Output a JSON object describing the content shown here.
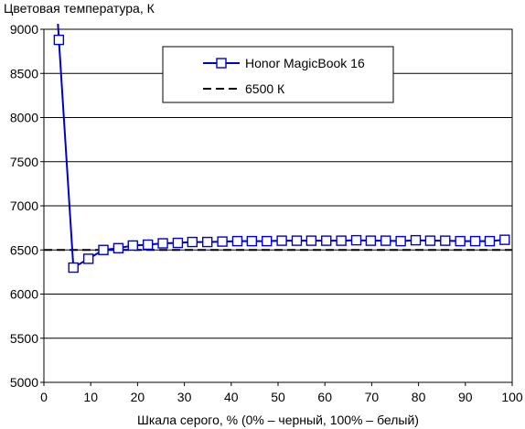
{
  "chart_data": {
    "type": "line",
    "title": "Цветовая температура, К",
    "xlabel": "Шкала серого, % (0% – черный, 100% – белый)",
    "ylabel": "",
    "xlim": [
      0,
      100
    ],
    "ylim": [
      5000,
      9000
    ],
    "x_ticks": [
      0,
      10,
      20,
      30,
      40,
      50,
      60,
      70,
      80,
      90,
      100
    ],
    "y_ticks": [
      5000,
      5500,
      6000,
      6500,
      7000,
      7500,
      8000,
      8500,
      9000
    ],
    "grid": "horizontal",
    "legend_position": "top-center",
    "series": [
      {
        "name": "Honor MagicBook 16",
        "color": "#0000cc",
        "marker": "square-open",
        "line_start": [
          3,
          9200
        ],
        "x": [
          3.2,
          6.3,
          9.5,
          12.7,
          15.9,
          19.0,
          22.2,
          25.4,
          28.6,
          31.7,
          34.9,
          38.1,
          41.3,
          44.4,
          47.6,
          50.8,
          54.0,
          57.1,
          60.3,
          63.5,
          66.7,
          69.8,
          73.0,
          76.2,
          79.4,
          82.5,
          85.7,
          88.9,
          92.1,
          95.2,
          98.4
        ],
        "y": [
          8880,
          6300,
          6400,
          6500,
          6520,
          6550,
          6560,
          6575,
          6580,
          6590,
          6590,
          6595,
          6600,
          6600,
          6600,
          6605,
          6605,
          6605,
          6605,
          6605,
          6610,
          6605,
          6605,
          6600,
          6610,
          6605,
          6605,
          6600,
          6600,
          6600,
          6615
        ]
      },
      {
        "name": "6500 К",
        "color": "#000000",
        "style": "dashed",
        "x": [
          0,
          100
        ],
        "y": [
          6500,
          6500
        ]
      }
    ]
  }
}
